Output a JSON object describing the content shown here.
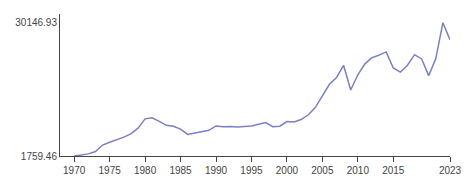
{
  "chart_data": {
    "type": "line",
    "x": [
      1970,
      1971,
      1972,
      1973,
      1974,
      1975,
      1976,
      1977,
      1978,
      1979,
      1980,
      1981,
      1982,
      1983,
      1984,
      1985,
      1986,
      1987,
      1988,
      1989,
      1990,
      1991,
      1992,
      1993,
      1994,
      1995,
      1996,
      1997,
      1998,
      1999,
      2000,
      2001,
      2002,
      2003,
      2004,
      2005,
      2006,
      2007,
      2008,
      2009,
      2010,
      2011,
      2012,
      2013,
      2014,
      2015,
      2016,
      2017,
      2018,
      2019,
      2020,
      2021,
      2022,
      2023
    ],
    "values": [
      1759.46,
      1926.0,
      2209.0,
      2716.0,
      4096.0,
      4674.0,
      5155.0,
      5789.0,
      6467.0,
      7688.0,
      9672.0,
      9907.0,
      9116.0,
      8291.0,
      8083.0,
      7497.0,
      6354.0,
      6622.0,
      6844.0,
      7219.0,
      8170.0,
      8008.0,
      8017.0,
      7928.0,
      8047.0,
      8153.0,
      8540.0,
      8874.0,
      8005.0,
      8108.0,
      9097.0,
      9026.0,
      9517.0,
      10486.0,
      12070.0,
      14681.0,
      17028.0,
      18476.0,
      21040.0,
      15820.0,
      19059.0,
      21391.0,
      22680.0,
      23252.0,
      23928.0,
      20503.0,
      19626.0,
      21088.0,
      23340.0,
      22426.0,
      18874.0,
      22500.0,
      30146.93,
      26500.0
    ],
    "color": "#7b7fc4",
    "xlim": [
      1968,
      2023
    ],
    "xticks": [
      1970,
      1975,
      1980,
      1985,
      1990,
      1995,
      2000,
      2005,
      2010,
      2015,
      2023
    ],
    "ylim": [
      1759.46,
      32000
    ],
    "yticks": [
      1759.46,
      30146.93
    ],
    "grid": false
  }
}
